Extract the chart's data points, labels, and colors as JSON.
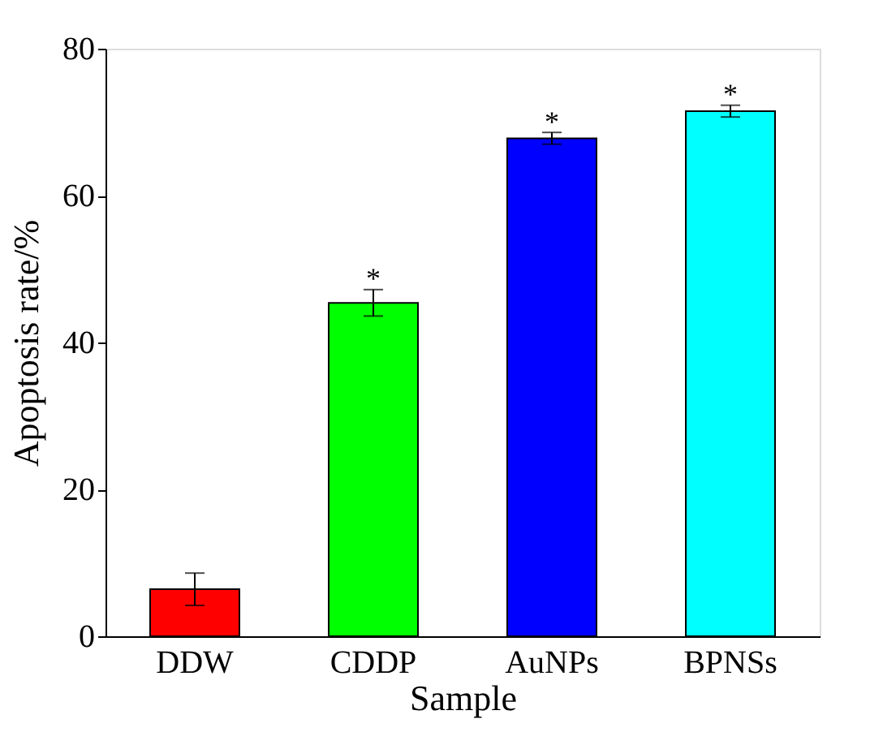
{
  "chart_data": {
    "type": "bar",
    "xlabel": "Sample",
    "ylabel": "Apoptosis rate/%",
    "categories": [
      "DDW",
      "CDDP",
      "AuNPs",
      "BPNSs"
    ],
    "values": [
      6.4,
      45.4,
      67.8,
      71.5
    ],
    "colors": [
      "#ff0000",
      "#00ff00",
      "#0000ff",
      "#00ffff"
    ],
    "errors": [
      2.2,
      1.8,
      0.8,
      0.8
    ],
    "ylim": [
      0,
      80
    ],
    "yticks": [
      0,
      20,
      40,
      60,
      80
    ],
    "grid": false,
    "legend": false,
    "annotations": [
      {
        "text": "*",
        "x": "CDDP",
        "y": 47.8
      },
      {
        "text": "*",
        "x": "AuNPs",
        "y": 69.2
      },
      {
        "text": "*",
        "x": "BPNSs",
        "y": 72.9
      }
    ]
  }
}
